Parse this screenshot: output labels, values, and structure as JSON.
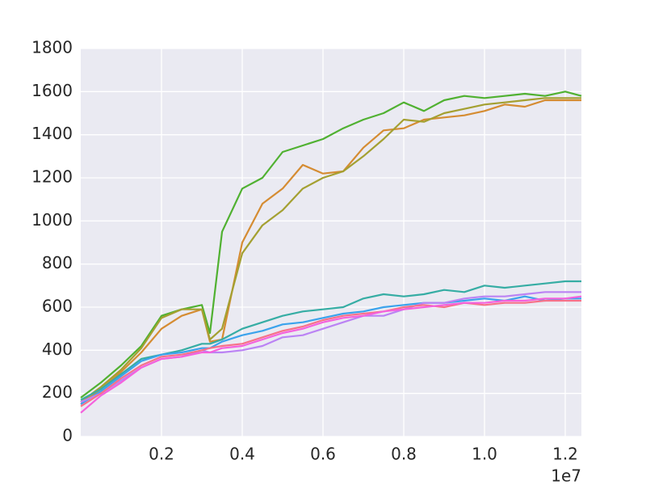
{
  "chart_data": {
    "type": "line",
    "x_offset_label": "1e7",
    "x": [
      0,
      0.05,
      0.1,
      0.15,
      0.2,
      0.25,
      0.3,
      0.32,
      0.35,
      0.4,
      0.45,
      0.5,
      0.55,
      0.6,
      0.65,
      0.7,
      0.75,
      0.8,
      0.85,
      0.9,
      0.95,
      1.0,
      1.05,
      1.1,
      1.15,
      1.2,
      1.24
    ],
    "series": [
      {
        "color": "#50b131",
        "values": [
          180,
          250,
          330,
          420,
          560,
          590,
          610,
          480,
          950,
          1150,
          1200,
          1320,
          1350,
          1380,
          1430,
          1470,
          1500,
          1550,
          1510,
          1560,
          1580,
          1570,
          1580,
          1590,
          1580,
          1600,
          1580
        ]
      },
      {
        "color": "#d58c32",
        "values": [
          150,
          220,
          300,
          390,
          500,
          560,
          590,
          440,
          450,
          900,
          1080,
          1150,
          1260,
          1220,
          1230,
          1340,
          1420,
          1430,
          1470,
          1480,
          1490,
          1510,
          1540,
          1530,
          1560,
          1560,
          1560
        ]
      },
      {
        "color": "#a4a031",
        "values": [
          160,
          230,
          310,
          410,
          550,
          590,
          590,
          450,
          500,
          850,
          980,
          1050,
          1150,
          1200,
          1230,
          1300,
          1380,
          1470,
          1460,
          1500,
          1520,
          1540,
          1550,
          1560,
          1570,
          1570,
          1570
        ]
      },
      {
        "color": "#36ada4",
        "values": [
          170,
          220,
          290,
          360,
          380,
          400,
          430,
          430,
          450,
          500,
          530,
          560,
          580,
          590,
          600,
          640,
          660,
          650,
          660,
          680,
          670,
          700,
          690,
          700,
          710,
          720,
          720
        ]
      },
      {
        "color": "#3ba3ec",
        "values": [
          150,
          210,
          280,
          350,
          380,
          390,
          410,
          410,
          440,
          470,
          490,
          520,
          530,
          550,
          570,
          580,
          600,
          610,
          620,
          620,
          630,
          640,
          630,
          650,
          630,
          640,
          640
        ]
      },
      {
        "color": "#bb83f4",
        "values": [
          160,
          200,
          260,
          320,
          360,
          370,
          400,
          390,
          390,
          400,
          420,
          460,
          470,
          500,
          530,
          560,
          560,
          590,
          620,
          620,
          640,
          650,
          650,
          660,
          670,
          670,
          670
        ]
      },
      {
        "color": "#f77189",
        "values": [
          140,
          200,
          270,
          330,
          370,
          380,
          400,
          410,
          420,
          430,
          460,
          490,
          510,
          540,
          560,
          570,
          580,
          600,
          610,
          600,
          620,
          610,
          620,
          620,
          630,
          630,
          630
        ]
      },
      {
        "color": "#f561dd",
        "values": [
          110,
          190,
          250,
          320,
          360,
          370,
          390,
          390,
          410,
          420,
          450,
          480,
          500,
          530,
          550,
          560,
          580,
          590,
          600,
          610,
          620,
          620,
          630,
          630,
          640,
          640,
          650
        ]
      }
    ],
    "xlim": [
      0,
      1.24
    ],
    "xticks": [
      0.2,
      0.4,
      0.6,
      0.8,
      {
        "value": 1,
        "label": "1.0"
      },
      1.2
    ],
    "ylim": [
      0,
      1800
    ],
    "yticks": [
      0,
      200,
      400,
      600,
      800,
      1000,
      1200,
      1400,
      1600,
      1800
    ],
    "grid": true,
    "background": "#eaeaf2"
  }
}
